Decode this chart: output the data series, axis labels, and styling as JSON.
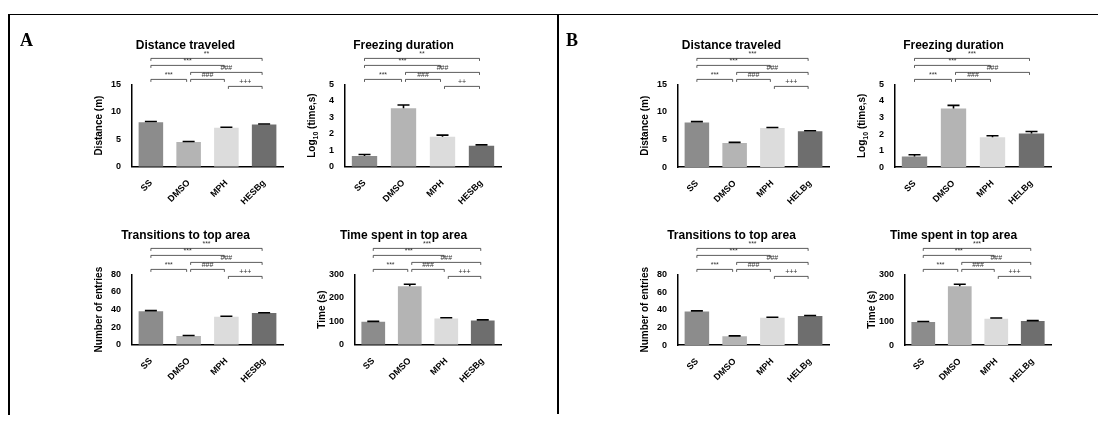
{
  "chart_data": [
    {
      "type": "bar",
      "title": "Distance traveled",
      "ylabel": "Distance (m)",
      "categories": [
        "SS",
        "DMSO",
        "MPH",
        "HESBg"
      ],
      "values": [
        8.1,
        4.5,
        7.1,
        7.7
      ],
      "errors": [
        0.15,
        0.1,
        0.1,
        0.1
      ],
      "colors": [
        "#8c8c8c",
        "#b4b4b4",
        "#dcdcdc",
        "#6e6e6e"
      ],
      "ylim": [
        0,
        15
      ],
      "yticks": [
        0,
        5,
        10,
        15
      ],
      "annotations": [
        "**",
        "***",
        "###",
        "***",
        "###",
        "+++",
        "A"
      ]
    },
    {
      "type": "bar",
      "title": "Freezing duration",
      "ylabel": "Log$_{10}$ (time,s)",
      "categories": [
        "SS",
        "DMSO",
        "MPH",
        "HESBg"
      ],
      "values": [
        0.65,
        3.55,
        1.82,
        1.27
      ],
      "errors": [
        0.1,
        0.2,
        0.1,
        0.06
      ],
      "colors": [
        "#8c8c8c",
        "#b4b4b4",
        "#dcdcdc",
        "#6e6e6e"
      ],
      "ylim": [
        0,
        5
      ],
      "yticks": [
        0,
        1,
        2,
        3,
        4,
        5
      ],
      "annotations": [
        "**",
        "***",
        "###",
        "***",
        "###",
        "++"
      ]
    },
    {
      "type": "bar",
      "title": "Transitions to top area",
      "ylabel": "Number of entries",
      "categories": [
        "SS",
        "DMSO",
        "MPH",
        "HESBg"
      ],
      "values": [
        38,
        10,
        32,
        36
      ],
      "errors": [
        0.8,
        0.5,
        0.5,
        0.5
      ],
      "colors": [
        "#8c8c8c",
        "#b4b4b4",
        "#dcdcdc",
        "#6e6e6e"
      ],
      "ylim": [
        0,
        80
      ],
      "yticks": [
        0,
        20,
        40,
        60,
        80
      ],
      "annotations": [
        "***",
        "***",
        "###",
        "***",
        "###",
        "+++"
      ]
    },
    {
      "type": "bar",
      "title": "Time spent in top area",
      "ylabel": "Time (s)",
      "categories": [
        "SS",
        "DMSO",
        "MPH",
        "HESBg"
      ],
      "values": [
        98,
        250,
        112,
        104
      ],
      "errors": [
        2,
        8,
        3,
        2
      ],
      "colors": [
        "#8c8c8c",
        "#b4b4b4",
        "#dcdcdc",
        "#6e6e6e"
      ],
      "ylim": [
        0,
        300
      ],
      "yticks": [
        0,
        100,
        200,
        300
      ],
      "annotations": [
        "***",
        "***",
        "###",
        "***",
        "###",
        "+++"
      ]
    },
    {
      "type": "bar",
      "title": "Distance traveled",
      "ylabel": "Distance (m)",
      "categories": [
        "SS",
        "DMSO",
        "MPH",
        "HELBg"
      ],
      "values": [
        8.1,
        4.4,
        7.1,
        6.5
      ],
      "errors": [
        0.15,
        0.1,
        0.1,
        0.1
      ],
      "colors": [
        "#8c8c8c",
        "#b4b4b4",
        "#dcdcdc",
        "#6e6e6e"
      ],
      "ylim": [
        0,
        15
      ],
      "yticks": [
        0,
        5,
        10,
        15
      ],
      "annotations": [
        "***",
        "***",
        "###",
        "***",
        "###",
        "+++",
        "B"
      ]
    },
    {
      "type": "bar",
      "title": "Freezing duration",
      "ylabel": "Log$_{10}$ (time,s)",
      "categories": [
        "SS",
        "DMSO",
        "MPH",
        "HELBg"
      ],
      "values": [
        0.65,
        3.55,
        1.8,
        2.03
      ],
      "errors": [
        0.1,
        0.18,
        0.1,
        0.12
      ],
      "colors": [
        "#8c8c8c",
        "#b4b4b4",
        "#dcdcdc",
        "#6e6e6e"
      ],
      "ylim": [
        0,
        5
      ],
      "yticks": [
        0,
        1,
        2,
        3,
        4,
        5
      ],
      "annotations": [
        "***",
        "***",
        "###",
        "***",
        "###"
      ]
    },
    {
      "type": "bar",
      "title": "Transitions to top area",
      "ylabel": "Number of entries",
      "categories": [
        "SS",
        "DMSO",
        "MPH",
        "HELBg"
      ],
      "values": [
        38,
        10,
        31,
        33
      ],
      "errors": [
        0.8,
        0.5,
        0.5,
        0.5
      ],
      "colors": [
        "#8c8c8c",
        "#b4b4b4",
        "#dcdcdc",
        "#6e6e6e"
      ],
      "ylim": [
        0,
        80
      ],
      "yticks": [
        0,
        20,
        40,
        60,
        80
      ],
      "annotations": [
        "***",
        "***",
        "###",
        "***",
        "###",
        "+++"
      ]
    },
    {
      "type": "bar",
      "title": "Time spent in top area",
      "ylabel": "Time (s)",
      "categories": [
        "SS",
        "DMSO",
        "MPH",
        "HELBg"
      ],
      "values": [
        98,
        250,
        112,
        102
      ],
      "errors": [
        2,
        8,
        3,
        2
      ],
      "colors": [
        "#8c8c8c",
        "#b4b4b4",
        "#dcdcdc",
        "#6e6e6e"
      ],
      "ylim": [
        0,
        300
      ],
      "yticks": [
        0,
        100,
        200,
        300
      ],
      "annotations": [
        "***",
        "***",
        "###",
        "***",
        "###",
        "+++"
      ]
    }
  ]
}
